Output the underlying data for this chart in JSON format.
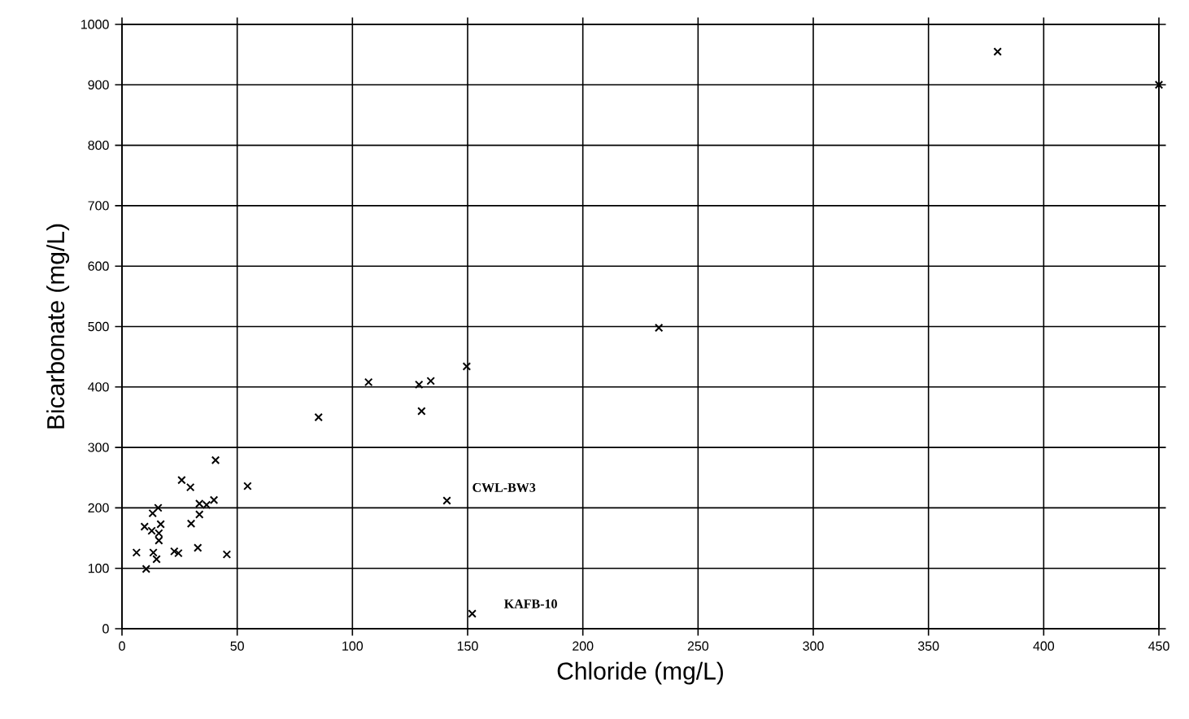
{
  "chart_data": {
    "type": "scatter",
    "xlabel": "Chloride (mg/L)",
    "ylabel": "Bicarbonate (mg/L)",
    "x": [
      40.6,
      25.9,
      29.7,
      54.5,
      33.6,
      39.9,
      36.7,
      15.7,
      13.3,
      33.6,
      30,
      9.8,
      16.8,
      12.9,
      16,
      16,
      6.3,
      13.6,
      22.7,
      24.5,
      32.9,
      45.5,
      15,
      10.5,
      85.3,
      107,
      128.9,
      134,
      130,
      149.6,
      141,
      152,
      233,
      380,
      450
    ],
    "values": [
      279,
      246,
      234,
      236,
      207,
      213,
      205,
      200,
      191,
      189,
      174,
      169,
      173,
      162,
      158,
      146,
      126,
      126,
      128,
      125,
      134,
      123,
      115,
      99,
      350,
      408,
      404,
      410,
      360,
      434,
      212,
      25,
      498,
      955,
      900
    ],
    "color": "#000000",
    "marker": "cross",
    "grid": true,
    "xlim": [
      0,
      450
    ],
    "ylim": [
      0,
      1000
    ],
    "xticks": [
      0,
      50,
      100,
      150,
      200,
      250,
      300,
      350,
      400,
      450
    ],
    "yticks": [
      0,
      100,
      200,
      300,
      400,
      500,
      600,
      700,
      800,
      900,
      1000
    ],
    "annotations": [
      {
        "text": "CWL-BW3",
        "x": 141,
        "y": 212
      },
      {
        "text": "KAFB-10",
        "x": 152,
        "y": 25
      }
    ]
  }
}
